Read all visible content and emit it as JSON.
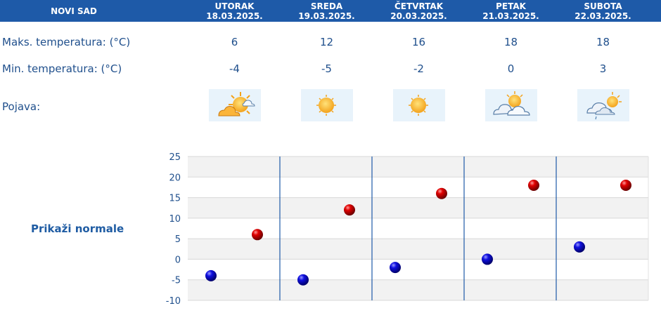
{
  "header": {
    "city": "NOVI SAD"
  },
  "days": [
    {
      "day": "UTORAK",
      "date": "18.03.2025.",
      "max": "6",
      "min": "-4",
      "icon": "sun-cloud-icon"
    },
    {
      "day": "SREDA",
      "date": "19.03.2025.",
      "max": "12",
      "min": "-5",
      "icon": "sun-icon"
    },
    {
      "day": "ČETVRTAK",
      "date": "20.03.2025.",
      "max": "16",
      "min": "-2",
      "icon": "sun-icon"
    },
    {
      "day": "PETAK",
      "date": "21.03.2025.",
      "max": "18",
      "min": "0",
      "icon": "cloud-sun-icon"
    },
    {
      "day": "SUBOTA",
      "date": "22.03.2025.",
      "max": "18",
      "min": "3",
      "icon": "cloud-sun-drizzle-icon"
    }
  ],
  "labels": {
    "max": "Maks. temperatura: (°C)",
    "min": "Min. temperatura: (°C)",
    "phenomenon": "Pojava:"
  },
  "normals_link": "Prikaži normale",
  "colors": {
    "header": "#1e5aa8",
    "text": "#1f4f8c",
    "max_marker": "#cc0000",
    "min_marker": "#0000cc",
    "band": "#f2f2f2"
  },
  "chart_data": {
    "type": "scatter",
    "categories": [
      "18.03.2025.",
      "19.03.2025.",
      "20.03.2025.",
      "21.03.2025.",
      "22.03.2025."
    ],
    "ylim": [
      -10,
      25
    ],
    "yticks": [
      25,
      20,
      15,
      10,
      5,
      0,
      -5,
      -10
    ],
    "series": [
      {
        "values": [
          6,
          12,
          16,
          18,
          18
        ],
        "color": "#cc0000"
      },
      {
        "values": [
          -4,
          -5,
          -2,
          0,
          3
        ],
        "color": "#0000cc"
      }
    ],
    "grid": true
  }
}
